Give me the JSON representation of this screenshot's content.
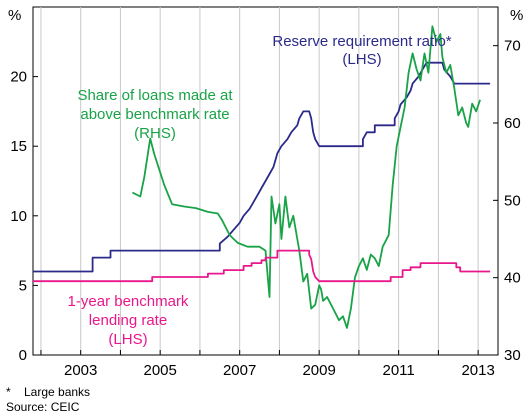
{
  "chart_data": {
    "type": "line",
    "left_axis": {
      "unit": "%",
      "min": 0,
      "max": 25,
      "ticks": [
        0,
        5,
        10,
        15,
        20
      ]
    },
    "right_axis": {
      "unit": "%",
      "min": 30,
      "max": 75,
      "ticks": [
        30,
        40,
        50,
        60,
        70
      ]
    },
    "x_axis": {
      "min": 2001.8,
      "max": 2013.5,
      "ticks": [
        2003,
        2005,
        2007,
        2009,
        2011,
        2013
      ]
    },
    "grid": "vertical",
    "series": [
      {
        "name": "Reserve requirement ratio*",
        "axis_note": "(LHS)",
        "axis": "left",
        "color": "#2b2a8a",
        "points": [
          [
            2001.8,
            6
          ],
          [
            2003.3,
            6
          ],
          [
            2003.3,
            7
          ],
          [
            2003.75,
            7
          ],
          [
            2003.75,
            7.5
          ],
          [
            2006.5,
            7.5
          ],
          [
            2006.5,
            8
          ],
          [
            2006.7,
            8.5
          ],
          [
            2006.85,
            9
          ],
          [
            2007.0,
            9.5
          ],
          [
            2007.1,
            10
          ],
          [
            2007.25,
            10.5
          ],
          [
            2007.35,
            11
          ],
          [
            2007.45,
            11.5
          ],
          [
            2007.55,
            12
          ],
          [
            2007.65,
            12.5
          ],
          [
            2007.75,
            13
          ],
          [
            2007.85,
            13.5
          ],
          [
            2007.95,
            14.5
          ],
          [
            2008.05,
            15
          ],
          [
            2008.2,
            15.5
          ],
          [
            2008.3,
            16
          ],
          [
            2008.45,
            16.5
          ],
          [
            2008.5,
            17
          ],
          [
            2008.6,
            17.5
          ],
          [
            2008.75,
            17.5
          ],
          [
            2008.8,
            17
          ],
          [
            2008.85,
            16
          ],
          [
            2008.9,
            15.5
          ],
          [
            2009.0,
            15
          ],
          [
            2010.1,
            15
          ],
          [
            2010.1,
            15.5
          ],
          [
            2010.2,
            16
          ],
          [
            2010.4,
            16
          ],
          [
            2010.4,
            16.5
          ],
          [
            2010.9,
            16.5
          ],
          [
            2010.9,
            17
          ],
          [
            2011.0,
            17.5
          ],
          [
            2011.05,
            18
          ],
          [
            2011.2,
            18.5
          ],
          [
            2011.3,
            19
          ],
          [
            2011.35,
            19.5
          ],
          [
            2011.5,
            20
          ],
          [
            2011.6,
            20.5
          ],
          [
            2011.7,
            21
          ],
          [
            2012.1,
            21
          ],
          [
            2012.15,
            20.5
          ],
          [
            2012.3,
            20
          ],
          [
            2012.4,
            19.5
          ],
          [
            2013.3,
            19.5
          ]
        ]
      },
      {
        "name": "Share of loans made at above benchmark rate",
        "axis_note": "(RHS)",
        "axis": "right",
        "color": "#19a347",
        "points": [
          [
            2004.3,
            51
          ],
          [
            2004.5,
            50.5
          ],
          [
            2004.6,
            53
          ],
          [
            2004.75,
            58
          ],
          [
            2004.85,
            56
          ],
          [
            2005.1,
            52
          ],
          [
            2005.3,
            49.5
          ],
          [
            2005.6,
            49.2
          ],
          [
            2005.9,
            49
          ],
          [
            2006.2,
            48.5
          ],
          [
            2006.45,
            48.3
          ],
          [
            2006.55,
            47.5
          ],
          [
            2006.75,
            45.5
          ],
          [
            2006.95,
            44.5
          ],
          [
            2007.2,
            44
          ],
          [
            2007.5,
            44
          ],
          [
            2007.65,
            43.5
          ],
          [
            2007.75,
            37.5
          ],
          [
            2007.8,
            50.5
          ],
          [
            2007.9,
            47
          ],
          [
            2008.0,
            49.5
          ],
          [
            2008.05,
            45
          ],
          [
            2008.15,
            50.5
          ],
          [
            2008.25,
            46.5
          ],
          [
            2008.35,
            48
          ],
          [
            2008.5,
            43.5
          ],
          [
            2008.6,
            39.5
          ],
          [
            2008.7,
            40.5
          ],
          [
            2008.8,
            36
          ],
          [
            2008.9,
            36.5
          ],
          [
            2009.0,
            39
          ],
          [
            2009.05,
            38.5
          ],
          [
            2009.1,
            37
          ],
          [
            2009.2,
            37.5
          ],
          [
            2009.3,
            36.5
          ],
          [
            2009.4,
            35.5
          ],
          [
            2009.5,
            34.5
          ],
          [
            2009.6,
            35
          ],
          [
            2009.7,
            33.5
          ],
          [
            2009.8,
            36
          ],
          [
            2009.9,
            40
          ],
          [
            2010.0,
            41.5
          ],
          [
            2010.1,
            42.5
          ],
          [
            2010.2,
            41
          ],
          [
            2010.3,
            43
          ],
          [
            2010.4,
            42.5
          ],
          [
            2010.5,
            41.5
          ],
          [
            2010.6,
            44
          ],
          [
            2010.75,
            45.5
          ],
          [
            2010.85,
            52
          ],
          [
            2010.95,
            57
          ],
          [
            2011.05,
            59.5
          ],
          [
            2011.15,
            62
          ],
          [
            2011.25,
            66.5
          ],
          [
            2011.35,
            69
          ],
          [
            2011.45,
            67
          ],
          [
            2011.55,
            65.5
          ],
          [
            2011.65,
            69
          ],
          [
            2011.75,
            66.5
          ],
          [
            2011.85,
            72.5
          ],
          [
            2011.95,
            70.5
          ],
          [
            2012.05,
            71.5
          ],
          [
            2012.1,
            68.5
          ],
          [
            2012.2,
            66.5
          ],
          [
            2012.3,
            67.5
          ],
          [
            2012.4,
            64.5
          ],
          [
            2012.5,
            61
          ],
          [
            2012.6,
            62
          ],
          [
            2012.7,
            60
          ],
          [
            2012.75,
            59.5
          ],
          [
            2012.85,
            62.5
          ],
          [
            2012.95,
            61.5
          ],
          [
            2013.05,
            63
          ]
        ]
      },
      {
        "name": "1-year benchmark lending rate",
        "axis_note": "(LHS)",
        "axis": "left",
        "color": "#e8178c",
        "points": [
          [
            2001.8,
            5.3
          ],
          [
            2004.8,
            5.3
          ],
          [
            2004.8,
            5.6
          ],
          [
            2006.2,
            5.6
          ],
          [
            2006.2,
            5.85
          ],
          [
            2006.6,
            5.85
          ],
          [
            2006.6,
            6.1
          ],
          [
            2007.1,
            6.1
          ],
          [
            2007.1,
            6.4
          ],
          [
            2007.3,
            6.4
          ],
          [
            2007.3,
            6.6
          ],
          [
            2007.55,
            6.6
          ],
          [
            2007.55,
            6.8
          ],
          [
            2007.65,
            6.8
          ],
          [
            2007.65,
            7.0
          ],
          [
            2007.95,
            7.0
          ],
          [
            2007.95,
            7.5
          ],
          [
            2008.75,
            7.5
          ],
          [
            2008.75,
            7.2
          ],
          [
            2008.8,
            6.9
          ],
          [
            2008.85,
            6.0
          ],
          [
            2008.9,
            5.6
          ],
          [
            2009.0,
            5.3
          ],
          [
            2010.8,
            5.3
          ],
          [
            2010.8,
            5.6
          ],
          [
            2011.1,
            5.6
          ],
          [
            2011.1,
            6.1
          ],
          [
            2011.3,
            6.1
          ],
          [
            2011.3,
            6.3
          ],
          [
            2011.55,
            6.3
          ],
          [
            2011.55,
            6.6
          ],
          [
            2012.45,
            6.6
          ],
          [
            2012.45,
            6.3
          ],
          [
            2012.55,
            6.3
          ],
          [
            2012.55,
            6.0
          ],
          [
            2013.3,
            6.0
          ]
        ]
      }
    ],
    "footnotes": [
      "*",
      "Large banks",
      "Source: CEIC"
    ]
  }
}
